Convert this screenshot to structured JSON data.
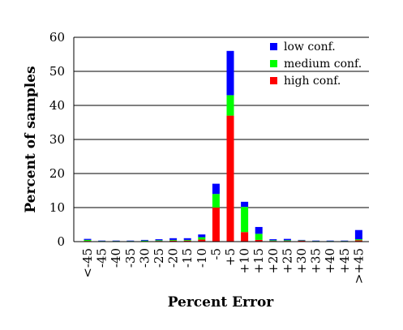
{
  "chart_data": {
    "type": "bar",
    "stacked": true,
    "title": "",
    "xlabel": "Percent Error",
    "ylabel": "Percent of samples",
    "ylim": [
      0,
      60
    ],
    "yticks": [
      "0",
      "10",
      "20",
      "30",
      "40",
      "50",
      "60"
    ],
    "grid": "horizontal",
    "legend_position": "top-right",
    "categories": [
      "<-45",
      "-45",
      "-40",
      "-35",
      "-30",
      "-25",
      "-20",
      "-15",
      "-10",
      "-5",
      "+5",
      "+10",
      "+15",
      "+20",
      "+25",
      "+30",
      "+35",
      "+40",
      "+45",
      ">+45"
    ],
    "series": [
      {
        "name": "high conf.",
        "color": "#ff0000",
        "values": [
          0.2,
          0.1,
          0.1,
          0.1,
          0.1,
          0.2,
          0.3,
          0.3,
          0.6,
          10.0,
          37.0,
          2.8,
          0.5,
          0.2,
          0.2,
          0.3,
          0.1,
          0.1,
          0.1,
          0.4
        ]
      },
      {
        "name": "medium conf.",
        "color": "#00ff00",
        "values": [
          0.3,
          0.1,
          0.1,
          0.1,
          0.2,
          0.2,
          0.2,
          0.2,
          0.7,
          4.0,
          6.0,
          7.4,
          1.8,
          0.2,
          0.2,
          0.1,
          0.1,
          0.1,
          0.1,
          0.3
        ]
      },
      {
        "name": "low conf.",
        "color": "#0000ff",
        "values": [
          0.3,
          0.1,
          0.1,
          0.1,
          0.2,
          0.3,
          0.5,
          0.5,
          0.8,
          3.0,
          13.0,
          1.5,
          2.0,
          0.3,
          0.4,
          0.1,
          0.1,
          0.1,
          0.1,
          2.7
        ]
      }
    ],
    "legend_order": [
      "low conf.",
      "medium conf.",
      "high conf."
    ]
  }
}
